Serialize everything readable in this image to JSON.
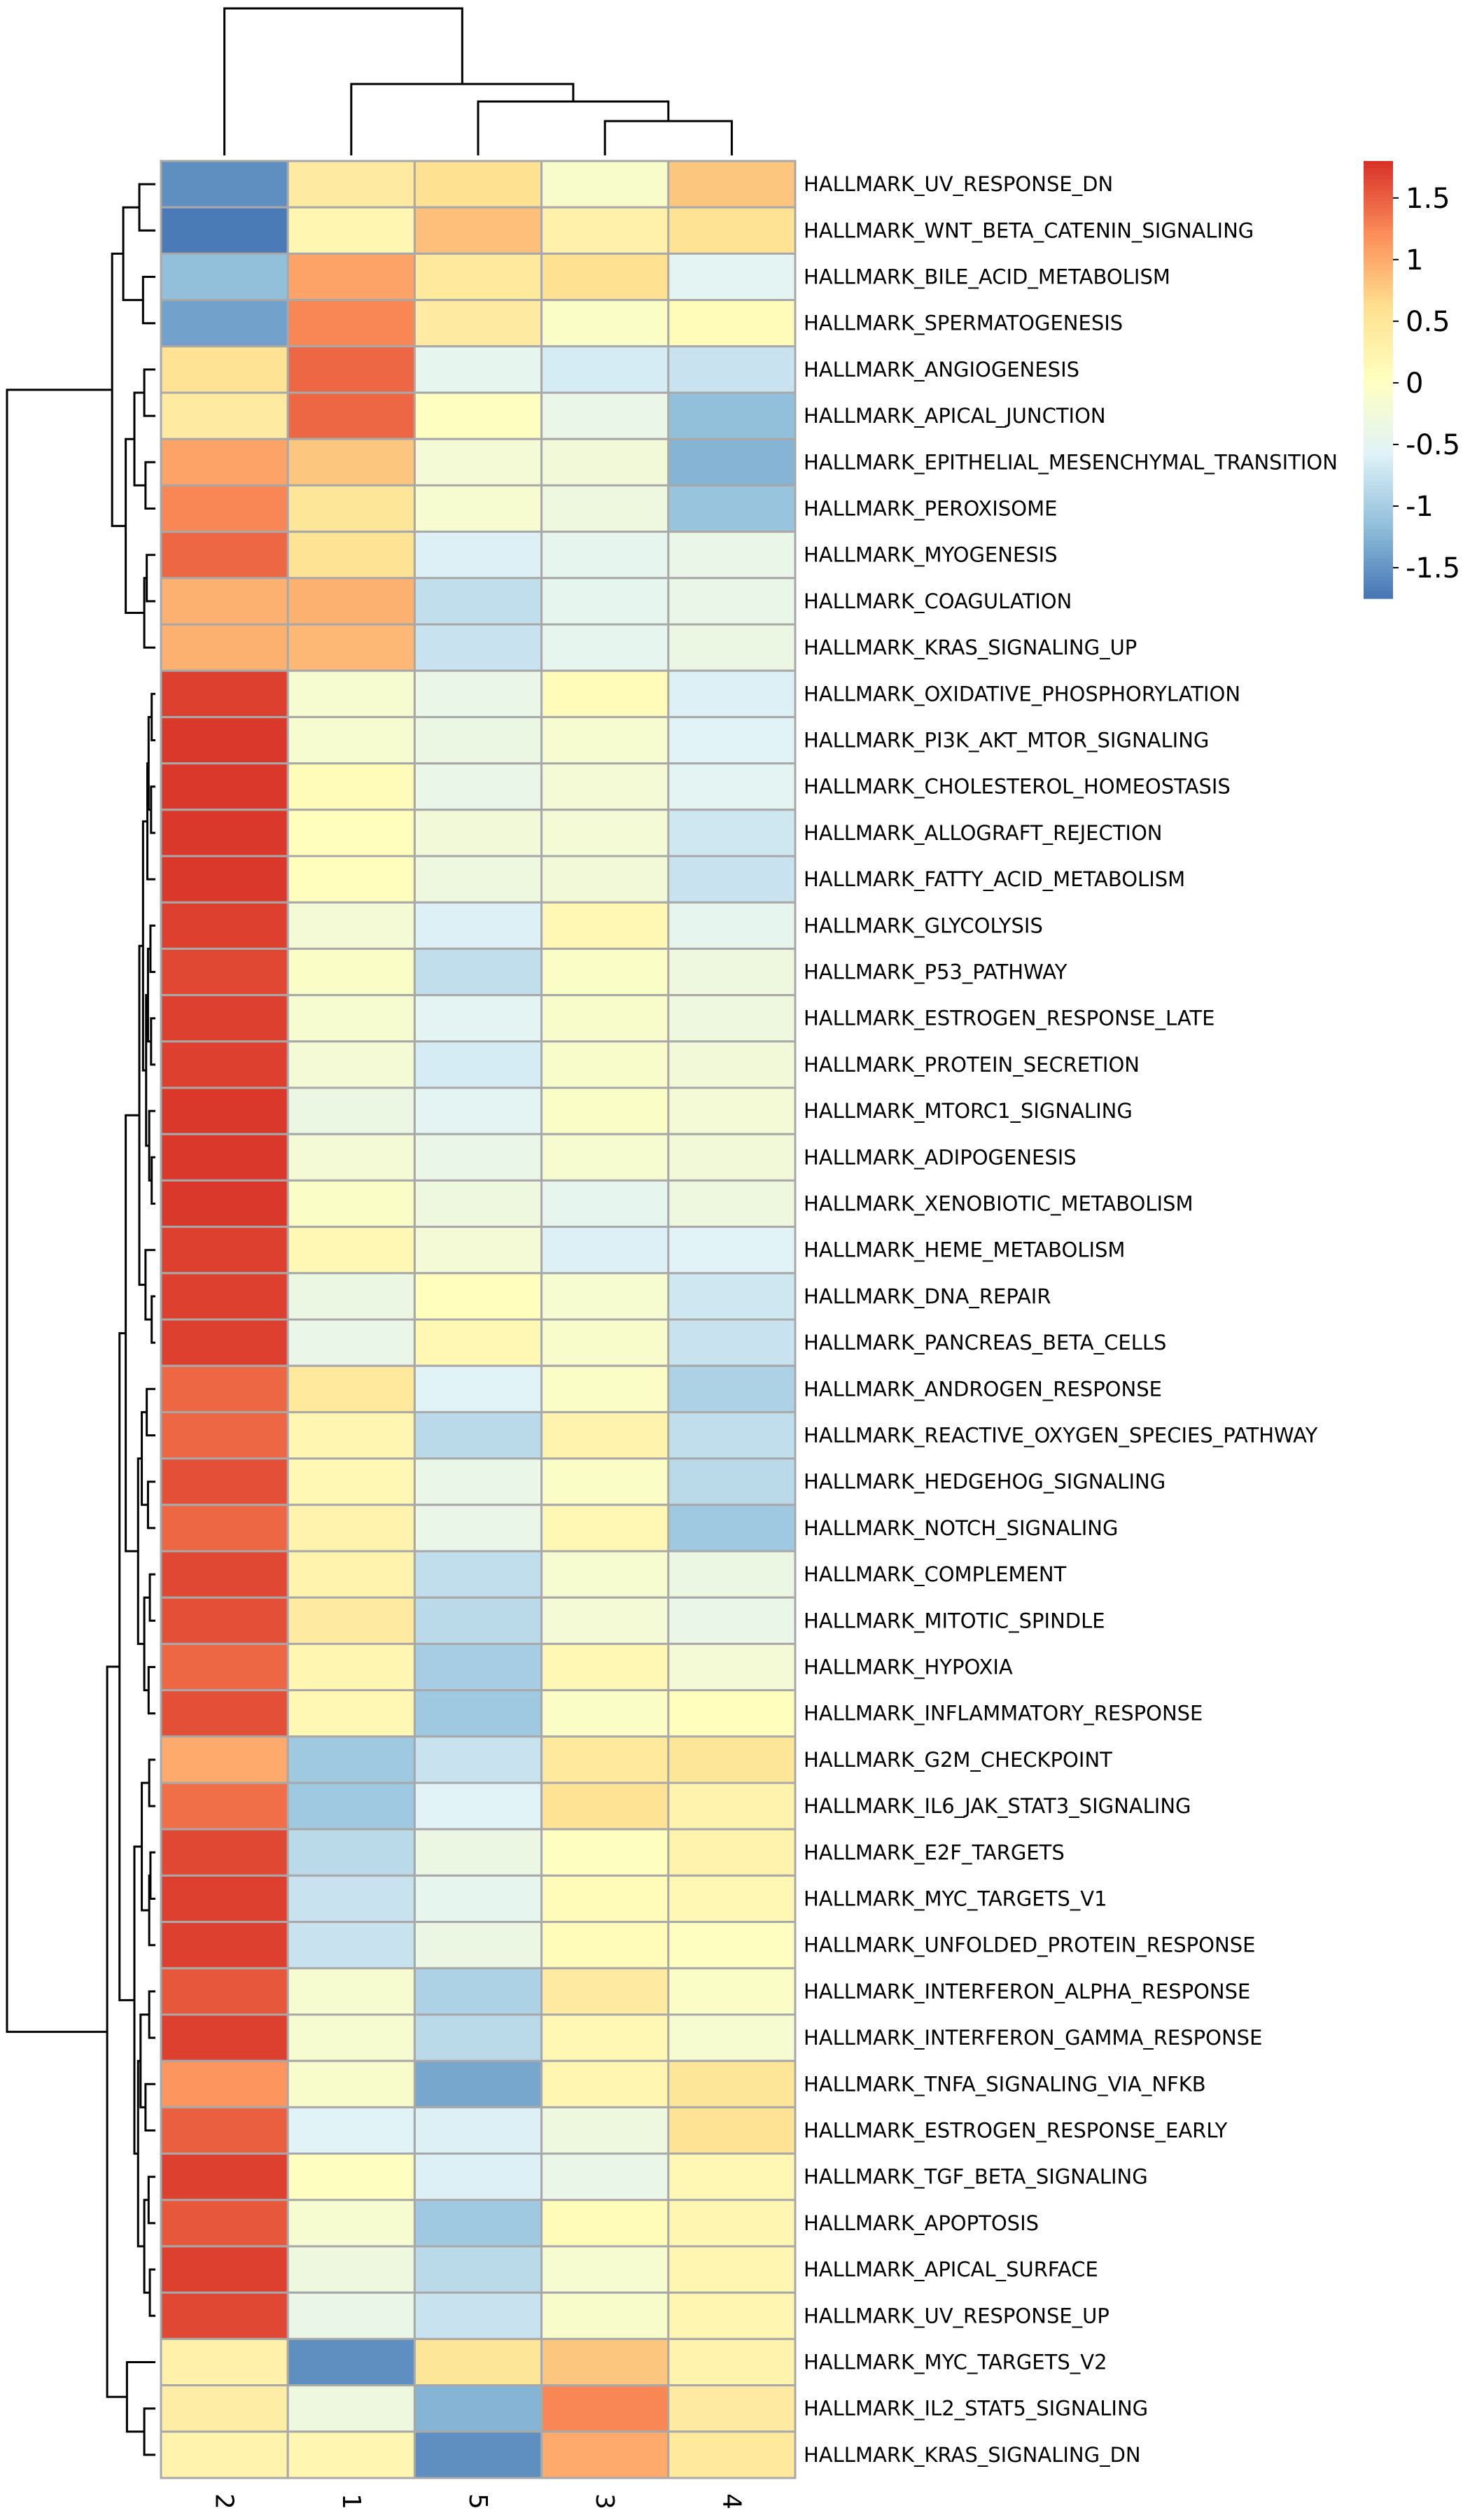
{
  "chart_data": {
    "type": "heatmap",
    "title": "",
    "columns": [
      "2",
      "1",
      "5",
      "3",
      "4"
    ],
    "rows": [
      "HALLMARK_UV_RESPONSE_DN",
      "HALLMARK_WNT_BETA_CATENIN_SIGNALING",
      "HALLMARK_BILE_ACID_METABOLISM",
      "HALLMARK_SPERMATOGENESIS",
      "HALLMARK_ANGIOGENESIS",
      "HALLMARK_APICAL_JUNCTION",
      "HALLMARK_EPITHELIAL_MESENCHYMAL_TRANSITION",
      "HALLMARK_PEROXISOME",
      "HALLMARK_MYOGENESIS",
      "HALLMARK_COAGULATION",
      "HALLMARK_KRAS_SIGNALING_UP",
      "HALLMARK_OXIDATIVE_PHOSPHORYLATION",
      "HALLMARK_PI3K_AKT_MTOR_SIGNALING",
      "HALLMARK_CHOLESTEROL_HOMEOSTASIS",
      "HALLMARK_ALLOGRAFT_REJECTION",
      "HALLMARK_FATTY_ACID_METABOLISM",
      "HALLMARK_GLYCOLYSIS",
      "HALLMARK_P53_PATHWAY",
      "HALLMARK_ESTROGEN_RESPONSE_LATE",
      "HALLMARK_PROTEIN_SECRETION",
      "HALLMARK_MTORC1_SIGNALING",
      "HALLMARK_ADIPOGENESIS",
      "HALLMARK_XENOBIOTIC_METABOLISM",
      "HALLMARK_HEME_METABOLISM",
      "HALLMARK_DNA_REPAIR",
      "HALLMARK_PANCREAS_BETA_CELLS",
      "HALLMARK_ANDROGEN_RESPONSE",
      "HALLMARK_REACTIVE_OXYGEN_SPECIES_PATHWAY",
      "HALLMARK_HEDGEHOG_SIGNALING",
      "HALLMARK_NOTCH_SIGNALING",
      "HALLMARK_COMPLEMENT",
      "HALLMARK_MITOTIC_SPINDLE",
      "HALLMARK_HYPOXIA",
      "HALLMARK_INFLAMMATORY_RESPONSE",
      "HALLMARK_G2M_CHECKPOINT",
      "HALLMARK_IL6_JAK_STAT3_SIGNALING",
      "HALLMARK_E2F_TARGETS",
      "HALLMARK_MYC_TARGETS_V1",
      "HALLMARK_UNFOLDED_PROTEIN_RESPONSE",
      "HALLMARK_INTERFERON_ALPHA_RESPONSE",
      "HALLMARK_INTERFERON_GAMMA_RESPONSE",
      "HALLMARK_TNFA_SIGNALING_VIA_NFKB",
      "HALLMARK_ESTROGEN_RESPONSE_EARLY",
      "HALLMARK_TGF_BETA_SIGNALING",
      "HALLMARK_APOPTOSIS",
      "HALLMARK_APICAL_SURFACE",
      "HALLMARK_UV_RESPONSE_UP",
      "HALLMARK_MYC_TARGETS_V2",
      "HALLMARK_IL2_STAT5_SIGNALING",
      "HALLMARK_KRAS_SIGNALING_DN"
    ],
    "values": [
      [
        -1.55,
        0.4,
        0.6,
        -0.1,
        0.8
      ],
      [
        -1.7,
        0.2,
        0.85,
        0.3,
        0.55
      ],
      [
        -1.15,
        1.05,
        0.45,
        0.6,
        -0.5
      ],
      [
        -1.4,
        1.25,
        0.4,
        -0.05,
        0.1
      ],
      [
        0.55,
        1.45,
        -0.45,
        -0.65,
        -0.75
      ],
      [
        0.4,
        1.45,
        0.0,
        -0.4,
        -1.15
      ],
      [
        1.05,
        0.8,
        -0.2,
        -0.25,
        -1.25
      ],
      [
        1.25,
        0.5,
        -0.15,
        -0.3,
        -1.1
      ],
      [
        1.45,
        0.55,
        -0.6,
        -0.45,
        -0.4
      ],
      [
        0.95,
        0.95,
        -0.8,
        -0.45,
        -0.4
      ],
      [
        0.95,
        0.9,
        -0.75,
        -0.45,
        -0.35
      ],
      [
        1.7,
        -0.15,
        -0.4,
        0.1,
        -0.6
      ],
      [
        1.75,
        -0.15,
        -0.35,
        -0.15,
        -0.55
      ],
      [
        1.75,
        0.1,
        -0.4,
        -0.2,
        -0.5
      ],
      [
        1.75,
        0.05,
        -0.25,
        -0.2,
        -0.7
      ],
      [
        1.75,
        0.05,
        -0.3,
        -0.25,
        -0.75
      ],
      [
        1.7,
        -0.2,
        -0.6,
        0.15,
        -0.45
      ],
      [
        1.65,
        -0.05,
        -0.8,
        -0.05,
        -0.3
      ],
      [
        1.7,
        -0.15,
        -0.5,
        -0.1,
        -0.3
      ],
      [
        1.7,
        -0.2,
        -0.65,
        -0.1,
        -0.25
      ],
      [
        1.75,
        -0.35,
        -0.5,
        -0.05,
        -0.2
      ],
      [
        1.75,
        -0.2,
        -0.4,
        -0.15,
        -0.25
      ],
      [
        1.75,
        -0.05,
        -0.3,
        -0.45,
        -0.3
      ],
      [
        1.7,
        0.15,
        -0.2,
        -0.6,
        -0.55
      ],
      [
        1.7,
        -0.35,
        0.05,
        -0.15,
        -0.7
      ],
      [
        1.7,
        -0.4,
        0.15,
        -0.1,
        -0.75
      ],
      [
        1.45,
        0.45,
        -0.55,
        -0.05,
        -0.95
      ],
      [
        1.45,
        0.2,
        -0.85,
        0.25,
        -0.8
      ],
      [
        1.6,
        0.15,
        -0.4,
        -0.05,
        -0.85
      ],
      [
        1.45,
        0.25,
        -0.4,
        0.15,
        -1.05
      ],
      [
        1.65,
        0.25,
        -0.8,
        -0.15,
        -0.35
      ],
      [
        1.6,
        0.4,
        -0.85,
        -0.2,
        -0.4
      ],
      [
        1.45,
        0.2,
        -1.0,
        0.15,
        -0.2
      ],
      [
        1.6,
        0.15,
        -1.05,
        -0.05,
        0.05
      ],
      [
        1.0,
        -1.05,
        -0.75,
        0.45,
        0.5
      ],
      [
        1.4,
        -1.05,
        -0.55,
        0.55,
        0.25
      ],
      [
        1.65,
        -0.85,
        -0.35,
        0.0,
        0.25
      ],
      [
        1.7,
        -0.75,
        -0.45,
        0.1,
        0.15
      ],
      [
        1.7,
        -0.75,
        -0.35,
        0.1,
        0.0
      ],
      [
        1.55,
        -0.15,
        -0.95,
        0.4,
        -0.05
      ],
      [
        1.7,
        -0.15,
        -0.85,
        0.15,
        -0.15
      ],
      [
        1.15,
        -0.1,
        -1.35,
        0.2,
        0.5
      ],
      [
        1.5,
        -0.55,
        -0.6,
        -0.3,
        0.55
      ],
      [
        1.7,
        0.0,
        -0.6,
        -0.4,
        0.15
      ],
      [
        1.55,
        -0.15,
        -1.05,
        0.1,
        0.2
      ],
      [
        1.7,
        -0.3,
        -0.85,
        -0.15,
        0.2
      ],
      [
        1.65,
        -0.4,
        -0.75,
        -0.1,
        0.2
      ],
      [
        0.3,
        -1.55,
        0.5,
        0.8,
        0.25
      ],
      [
        0.35,
        -0.3,
        -1.25,
        1.25,
        0.4
      ],
      [
        0.25,
        0.2,
        -1.55,
        1.0,
        0.45
      ]
    ],
    "colorbar": {
      "ticks": [
        1.5,
        1,
        0.5,
        0,
        -0.5,
        -1,
        -1.5
      ],
      "tick_labels": [
        "1.5",
        "1",
        "0.5",
        "0",
        "-0.5",
        "-1",
        "-1.5"
      ],
      "range": [
        -1.75,
        1.8
      ],
      "colors": [
        "#4575b4",
        "#91bfdb",
        "#e0f3f8",
        "#ffffbf",
        "#fee090",
        "#fc8d59",
        "#d73027"
      ]
    },
    "legend_position": "top-right",
    "row_dendrogram": true,
    "column_dendrogram": true
  }
}
